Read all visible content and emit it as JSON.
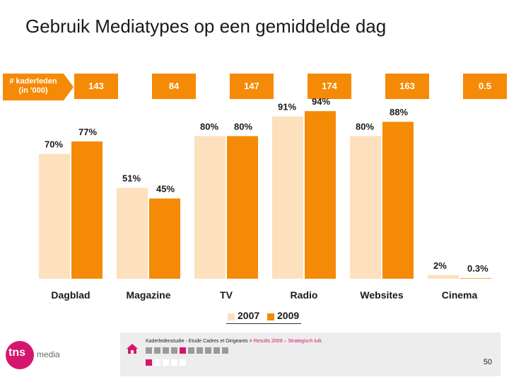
{
  "title": "Gebruik Mediatypes op een gemiddelde dag",
  "members_label": [
    "# kaderleden",
    "(in '000)"
  ],
  "member_counts": [
    "143",
    "84",
    "147",
    "174",
    "163",
    "0.5"
  ],
  "colors": {
    "y2007": "#fde0bd",
    "y2009": "#f58a07",
    "accent": "#d4166f"
  },
  "chart_data": {
    "type": "bar",
    "title": "Gebruik Mediatypes op een gemiddelde dag",
    "categories": [
      "Dagblad",
      "Magazine",
      "TV",
      "Radio",
      "Websites",
      "Cinema"
    ],
    "series": [
      {
        "name": "2007",
        "values": [
          70,
          51,
          80,
          91,
          80,
          2
        ],
        "labels": [
          "70%",
          "51%",
          "80%",
          "91%",
          "80%",
          "2%"
        ]
      },
      {
        "name": "2009",
        "values": [
          77,
          45,
          80,
          94,
          88,
          0.3
        ],
        "labels": [
          "77%",
          "45%",
          "80%",
          "94%",
          "88%",
          "0.3%"
        ]
      }
    ],
    "ylim": [
      0,
      100
    ],
    "xlabel": "",
    "ylabel": "",
    "legend": "bottom-center"
  },
  "legend": {
    "items": [
      "2007",
      "2009"
    ]
  },
  "footer": {
    "source_main": "Kaderledenstudie - Etude Cadres et Dirigeants > ",
    "source_highlight": "Results 2009 – Strategisch luik",
    "page_number": "50"
  },
  "logo": {
    "tns": "tns",
    "media": "media"
  }
}
